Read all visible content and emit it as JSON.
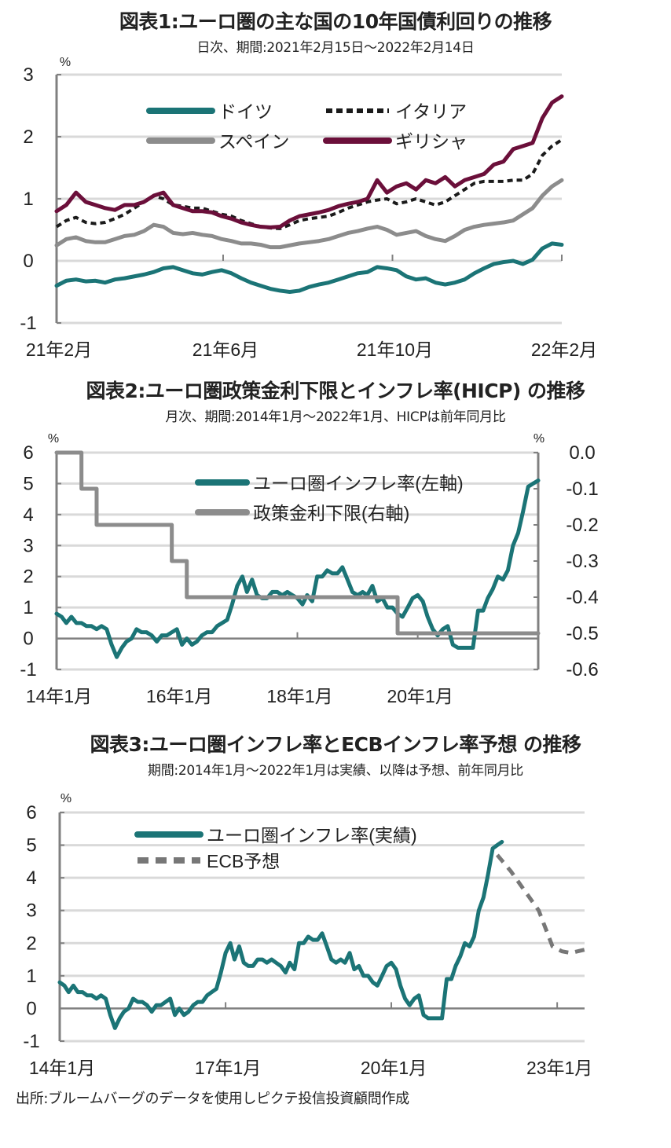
{
  "colors": {
    "teal": "#1b7476",
    "gray": "#8c8c8c",
    "black": "#1a1a1a",
    "maroon": "#6b0f3a",
    "forecast": "#777777",
    "grid": "#d9d9d9",
    "axis": "#808080"
  },
  "charts": [
    {
      "title": "図表1:ユーロ圏の主な国の10年国債利回りの推移",
      "subtitle": "日次、期間:2021年2月15日～2022年2月14日",
      "chart_data": {
        "type": "line",
        "unit": "%",
        "ylim": [
          -1,
          3
        ],
        "yticks": [
          -1,
          0,
          1,
          2,
          3
        ],
        "xlim": [
          "2021-02-15",
          "2022-02-14"
        ],
        "xticks": [
          {
            "x": "2021-02-15",
            "label": "21年2月"
          },
          {
            "x": "2021-06-15",
            "label": "21年6月"
          },
          {
            "x": "2021-10-15",
            "label": "21年10月"
          },
          {
            "x": "2022-02-14",
            "label": "22年2月"
          }
        ],
        "grid": true,
        "legend": "top-left",
        "x": [
          "2021-02-15",
          "2021-02-22",
          "2021-03-01",
          "2021-03-08",
          "2021-03-15",
          "2021-03-22",
          "2021-03-29",
          "2021-04-05",
          "2021-04-12",
          "2021-04-19",
          "2021-04-26",
          "2021-05-03",
          "2021-05-10",
          "2021-05-17",
          "2021-05-24",
          "2021-05-31",
          "2021-06-07",
          "2021-06-14",
          "2021-06-21",
          "2021-06-28",
          "2021-07-05",
          "2021-07-12",
          "2021-07-19",
          "2021-07-26",
          "2021-08-02",
          "2021-08-09",
          "2021-08-16",
          "2021-08-23",
          "2021-08-30",
          "2021-09-06",
          "2021-09-13",
          "2021-09-20",
          "2021-09-27",
          "2021-10-04",
          "2021-10-11",
          "2021-10-18",
          "2021-10-25",
          "2021-11-01",
          "2021-11-08",
          "2021-11-15",
          "2021-11-22",
          "2021-11-29",
          "2021-12-06",
          "2021-12-13",
          "2021-12-20",
          "2021-12-27",
          "2022-01-03",
          "2022-01-10",
          "2022-01-17",
          "2022-01-24",
          "2022-01-31",
          "2022-02-07",
          "2022-02-14"
        ],
        "series": [
          {
            "name": "ドイツ",
            "color": "#1b7476",
            "style": "solid",
            "values": [
              -0.4,
              -0.32,
              -0.3,
              -0.33,
              -0.32,
              -0.35,
              -0.3,
              -0.28,
              -0.25,
              -0.22,
              -0.18,
              -0.12,
              -0.1,
              -0.15,
              -0.2,
              -0.22,
              -0.18,
              -0.15,
              -0.2,
              -0.28,
              -0.35,
              -0.4,
              -0.45,
              -0.48,
              -0.5,
              -0.48,
              -0.42,
              -0.38,
              -0.35,
              -0.3,
              -0.25,
              -0.2,
              -0.18,
              -0.1,
              -0.12,
              -0.15,
              -0.25,
              -0.3,
              -0.28,
              -0.35,
              -0.38,
              -0.35,
              -0.3,
              -0.2,
              -0.12,
              -0.05,
              -0.02,
              0.0,
              -0.05,
              0.02,
              0.2,
              0.28,
              0.26
            ]
          },
          {
            "name": "スペイン",
            "color": "#8c8c8c",
            "style": "solid",
            "values": [
              0.25,
              0.35,
              0.38,
              0.32,
              0.3,
              0.3,
              0.35,
              0.4,
              0.42,
              0.48,
              0.58,
              0.55,
              0.45,
              0.43,
              0.45,
              0.42,
              0.4,
              0.35,
              0.32,
              0.28,
              0.28,
              0.26,
              0.22,
              0.22,
              0.25,
              0.28,
              0.3,
              0.32,
              0.35,
              0.4,
              0.45,
              0.48,
              0.52,
              0.55,
              0.5,
              0.42,
              0.45,
              0.48,
              0.4,
              0.35,
              0.32,
              0.4,
              0.5,
              0.55,
              0.58,
              0.6,
              0.62,
              0.65,
              0.75,
              0.85,
              1.05,
              1.2,
              1.3
            ]
          },
          {
            "name": "イタリア",
            "color": "#1a1a1a",
            "style": "dashed",
            "values": [
              0.55,
              0.65,
              0.7,
              0.62,
              0.6,
              0.62,
              0.68,
              0.75,
              0.85,
              0.95,
              1.05,
              1.0,
              0.9,
              0.88,
              0.85,
              0.85,
              0.8,
              0.75,
              0.72,
              0.65,
              0.6,
              0.55,
              0.53,
              0.52,
              0.58,
              0.65,
              0.68,
              0.7,
              0.72,
              0.78,
              0.85,
              0.9,
              0.95,
              0.98,
              1.0,
              0.92,
              0.95,
              1.0,
              0.95,
              0.9,
              0.95,
              1.05,
              1.15,
              1.25,
              1.28,
              1.28,
              1.28,
              1.3,
              1.3,
              1.4,
              1.7,
              1.85,
              1.95
            ]
          },
          {
            "name": "ギリシャ",
            "color": "#6b0f3a",
            "style": "solid",
            "values": [
              0.8,
              0.9,
              1.1,
              0.95,
              0.9,
              0.85,
              0.82,
              0.9,
              0.9,
              0.95,
              1.05,
              1.1,
              0.9,
              0.85,
              0.8,
              0.8,
              0.78,
              0.72,
              0.68,
              0.62,
              0.58,
              0.55,
              0.54,
              0.55,
              0.65,
              0.72,
              0.75,
              0.78,
              0.82,
              0.88,
              0.92,
              0.95,
              1.0,
              1.3,
              1.1,
              1.2,
              1.25,
              1.15,
              1.3,
              1.25,
              1.35,
              1.2,
              1.3,
              1.35,
              1.4,
              1.55,
              1.6,
              1.8,
              1.85,
              1.9,
              2.3,
              2.55,
              2.65
            ]
          }
        ]
      }
    },
    {
      "title": "図表2:ユーロ圏政策金利下限とインフレ率(HICP) の推移",
      "subtitle": "月次、期間:2014年1月～2022年1月、HICPは前年同月比",
      "chart_data": {
        "type": "line",
        "unit": "%",
        "unit_right": "%",
        "ylim": [
          -1,
          6
        ],
        "yticks": [
          -1,
          0,
          1,
          2,
          3,
          4,
          5,
          6
        ],
        "ylim_right": [
          -0.6,
          0.0
        ],
        "yticks_right": [
          "-0.6",
          "-0.5",
          "-0.4",
          "-0.3",
          "-0.2",
          "-0.1",
          "0.0"
        ],
        "xlim": [
          "2014-01",
          "2022-01"
        ],
        "xticks": [
          {
            "x": "2014-01",
            "label": "14年1月"
          },
          {
            "x": "2016-01",
            "label": "16年1月"
          },
          {
            "x": "2018-01",
            "label": "18年1月"
          },
          {
            "x": "2020-01",
            "label": "20年1月"
          }
        ],
        "grid": true,
        "legend": "top-center",
        "series": [
          {
            "name": "ユーロ圏インフレ率(左軸)",
            "color": "#1b7476",
            "axis": "left",
            "style": "solid",
            "monthly_by_year": {
              "2014": [
                0.8,
                0.7,
                0.5,
                0.7,
                0.5,
                0.5,
                0.4,
                0.4,
                0.3,
                0.4,
                0.3,
                -0.2
              ],
              "2015": [
                -0.6,
                -0.3,
                -0.1,
                0.0,
                0.3,
                0.2,
                0.2,
                0.1,
                -0.1,
                0.1,
                0.1,
                0.2
              ],
              "2016": [
                0.3,
                -0.2,
                0.0,
                -0.2,
                -0.1,
                0.1,
                0.2,
                0.2,
                0.4,
                0.5,
                0.6,
                1.1
              ],
              "2017": [
                1.7,
                2.0,
                1.5,
                1.9,
                1.4,
                1.3,
                1.3,
                1.5,
                1.5,
                1.4,
                1.5,
                1.4
              ],
              "2018": [
                1.3,
                1.1,
                1.4,
                1.2,
                2.0,
                2.0,
                2.2,
                2.1,
                2.1,
                2.3,
                1.9,
                1.5
              ],
              "2019": [
                1.4,
                1.5,
                1.4,
                1.7,
                1.2,
                1.3,
                1.0,
                1.0,
                0.8,
                0.7,
                1.0,
                1.3
              ],
              "2020": [
                1.4,
                1.2,
                0.7,
                0.3,
                0.1,
                0.3,
                0.4,
                -0.2,
                -0.3,
                -0.3,
                -0.3,
                -0.3
              ],
              "2021": [
                0.9,
                0.9,
                1.3,
                1.6,
                2.0,
                1.9,
                2.2,
                3.0,
                3.4,
                4.1,
                4.9,
                5.0
              ],
              "2022": [
                5.1
              ]
            }
          },
          {
            "name": "政策金利下限(右軸)",
            "color": "#8c8c8c",
            "axis": "right",
            "style": "step",
            "monthly_by_year": {
              "2014": [
                0,
                0,
                0,
                0,
                0,
                -0.1,
                -0.1,
                -0.1,
                -0.2,
                -0.2,
                -0.2,
                -0.2
              ],
              "2015": [
                -0.2,
                -0.2,
                -0.2,
                -0.2,
                -0.2,
                -0.2,
                -0.2,
                -0.2,
                -0.2,
                -0.2,
                -0.2,
                -0.3
              ],
              "2016": [
                -0.3,
                -0.3,
                -0.4,
                -0.4,
                -0.4,
                -0.4,
                -0.4,
                -0.4,
                -0.4,
                -0.4,
                -0.4,
                -0.4
              ],
              "2017": [
                -0.4,
                -0.4,
                -0.4,
                -0.4,
                -0.4,
                -0.4,
                -0.4,
                -0.4,
                -0.4,
                -0.4,
                -0.4,
                -0.4
              ],
              "2018": [
                -0.4,
                -0.4,
                -0.4,
                -0.4,
                -0.4,
                -0.4,
                -0.4,
                -0.4,
                -0.4,
                -0.4,
                -0.4,
                -0.4
              ],
              "2019": [
                -0.4,
                -0.4,
                -0.4,
                -0.4,
                -0.4,
                -0.4,
                -0.4,
                -0.4,
                -0.5,
                -0.5,
                -0.5,
                -0.5
              ],
              "2020": [
                -0.5,
                -0.5,
                -0.5,
                -0.5,
                -0.5,
                -0.5,
                -0.5,
                -0.5,
                -0.5,
                -0.5,
                -0.5,
                -0.5
              ],
              "2021": [
                -0.5,
                -0.5,
                -0.5,
                -0.5,
                -0.5,
                -0.5,
                -0.5,
                -0.5,
                -0.5,
                -0.5,
                -0.5,
                -0.5
              ],
              "2022": [
                -0.5
              ]
            }
          }
        ]
      }
    },
    {
      "title": "図表3:ユーロ圏インフレ率とECBインフレ率予想 の推移",
      "subtitle": "期間:2014年1月～2022年1月は実績、以降は予想、前年同月比",
      "chart_data": {
        "type": "line",
        "unit": "%",
        "ylim": [
          -1,
          6
        ],
        "yticks": [
          -1,
          0,
          1,
          2,
          3,
          4,
          5,
          6
        ],
        "xlim": [
          "2014-01",
          "2023-07"
        ],
        "xticks": [
          {
            "x": "2014-01",
            "label": "14年1月"
          },
          {
            "x": "2017-01",
            "label": "17年1月"
          },
          {
            "x": "2020-01",
            "label": "20年1月"
          },
          {
            "x": "2023-01",
            "label": "23年1月"
          }
        ],
        "grid": true,
        "legend": "top-left",
        "series": [
          {
            "name": "ユーロ圏インフレ率(実績)",
            "color": "#1b7476",
            "style": "solid",
            "same_as": "hicp"
          },
          {
            "name": "ECB予想",
            "color": "#777777",
            "style": "dashed",
            "points": [
              [
                "2021-12",
                4.7
              ],
              [
                "2022-03",
                4.2
              ],
              [
                "2022-06",
                3.6
              ],
              [
                "2022-09",
                3.0
              ],
              [
                "2022-12",
                1.9
              ],
              [
                "2023-02",
                1.75
              ],
              [
                "2023-04",
                1.7
              ],
              [
                "2023-07",
                1.8
              ]
            ]
          }
        ]
      }
    }
  ],
  "source": "出所:ブルームバーグのデータを使用しピクテ投信投資顧問作成"
}
